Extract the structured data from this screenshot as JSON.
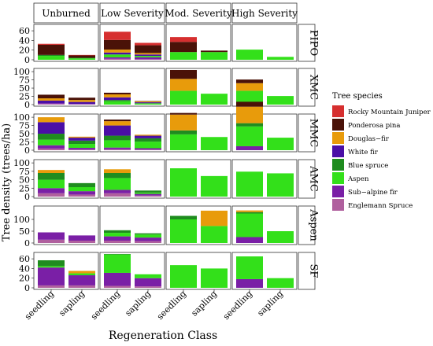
{
  "chart_data": {
    "type": "bar",
    "stacked": true,
    "xlabel": "Regeneration Class",
    "ylabel": "Tree density (trees/ha)",
    "x_categories": [
      "seedling",
      "sapling"
    ],
    "severity_columns": [
      "Unburned",
      "Low Severity",
      "Mod. Severity",
      "High Severity"
    ],
    "forest_type_rows": [
      {
        "label": "PIPO",
        "ylim": [
          0,
          70
        ],
        "ticks": [
          0,
          20,
          40,
          60
        ]
      },
      {
        "label": "XMC",
        "ylim": [
          0,
          105
        ],
        "ticks": [
          0,
          25,
          50,
          75,
          100
        ]
      },
      {
        "label": "MMC",
        "ylim": [
          0,
          105
        ],
        "ticks": [
          0,
          25,
          50,
          75,
          100
        ]
      },
      {
        "label": "AMC",
        "ylim": [
          0,
          105
        ],
        "ticks": [
          0,
          25,
          50,
          75,
          100
        ]
      },
      {
        "label": "Aspen",
        "ylim": [
          0,
          150
        ],
        "ticks": [
          0,
          50,
          100
        ]
      },
      {
        "label": "SF",
        "ylim": [
          0,
          70
        ],
        "ticks": [
          0,
          20,
          40,
          60
        ]
      }
    ],
    "legend": {
      "title": "Tree species",
      "position": "right",
      "items": [
        {
          "name": "Rocky Mountain Juniper",
          "color": "#d62f2f"
        },
        {
          "name": "Ponderosa pina",
          "color": "#4a1208"
        },
        {
          "name": "Douglas−fir",
          "color": "#e89b0b"
        },
        {
          "name": "White fir",
          "color": "#4a0fa6"
        },
        {
          "name": "Blue spruce",
          "color": "#1f8c1f"
        },
        {
          "name": "Aspen",
          "color": "#33e01a"
        },
        {
          "name": "Sub−alpine fir",
          "color": "#7a1fa6"
        },
        {
          "name": "Englemann Spruce",
          "color": "#b0609e"
        }
      ]
    },
    "panels": [
      {
        "row": "PIPO",
        "col": "Unburned",
        "bars": [
          [
            0,
            0,
            0,
            0,
            0,
            8,
            0,
            0,
            0,
            0,
            0,
            0,
            0,
            0,
            0,
            0,
            0,
            0,
            0,
            0,
            0,
            0,
            0,
            0
          ],
          [
            0,
            0,
            0,
            0,
            0,
            0,
            0,
            0
          ]
        ],
        "stacks": {
          "seedling": {
            "Aspen": 8,
            "Blue spruce": 2,
            "Ponderosa pina": 21,
            "Rocky Mountain Juniper": 2
          },
          "sapling": {
            "Aspen": 3,
            "Blue spruce": 1,
            "Ponderosa pina": 5,
            "Rocky Mountain Juniper": 1
          }
        }
      },
      {
        "row": "PIPO",
        "col": "Low Severity",
        "stacks": {
          "seedling": {
            "Englemann Spruce": 2,
            "Sub−alpine fir": 3,
            "Aspen": 6,
            "White fir": 4,
            "Douglas−fir": 6,
            "Ponderosa pina": 20,
            "Rocky Mountain Juniper": 17
          },
          "sapling": {
            "Englemann Spruce": 1,
            "Sub−alpine fir": 4,
            "Aspen": 3,
            "White fir": 3,
            "Douglas−fir": 3,
            "Ponderosa pina": 16,
            "Rocky Mountain Juniper": 5
          }
        }
      },
      {
        "row": "PIPO",
        "col": "Mod. Severity",
        "stacks": {
          "seedling": {
            "Aspen": 16,
            "Ponderosa pina": 21,
            "Rocky Mountain Juniper": 10
          },
          "sapling": {
            "Aspen": 16,
            "Ponderosa pina": 3
          }
        }
      },
      {
        "row": "PIPO",
        "col": "High Severity",
        "stacks": {
          "seedling": {
            "Aspen": 21
          },
          "sapling": {
            "Aspen": 6
          }
        }
      },
      {
        "row": "XMC",
        "col": "Unburned",
        "stacks": {
          "seedling": {
            "Englemann Spruce": 2,
            "Sub−alpine fir": 2,
            "White fir": 8,
            "Douglas−fir": 7,
            "Ponderosa pina": 11
          },
          "sapling": {
            "Englemann Spruce": 1,
            "Sub−alpine fir": 1,
            "White fir": 6,
            "Douglas−fir": 6,
            "Ponderosa pina": 7
          }
        }
      },
      {
        "row": "XMC",
        "col": "Low Severity",
        "stacks": {
          "seedling": {
            "Aspen": 10,
            "White fir": 8,
            "Blue spruce": 4,
            "Douglas−fir": 9,
            "Ponderosa pina": 5
          },
          "sapling": {
            "Aspen": 4,
            "White fir": 3,
            "Douglas−fir": 3,
            "Ponderosa pina": 1
          }
        }
      },
      {
        "row": "XMC",
        "col": "Mod. Severity",
        "stacks": {
          "seedling": {
            "Aspen": 42,
            "Douglas−fir": 36,
            "Ponderosa pina": 27
          },
          "sapling": {
            "Aspen": 33
          }
        }
      },
      {
        "row": "XMC",
        "col": "High Severity",
        "stacks": {
          "seedling": {
            "Aspen": 42,
            "Douglas−fir": 23,
            "Ponderosa pina": 11
          },
          "sapling": {
            "Aspen": 26
          }
        }
      },
      {
        "row": "MMC",
        "col": "Unburned",
        "stacks": {
          "seedling": {
            "Englemann Spruce": 5,
            "Sub−alpine fir": 10,
            "Aspen": 17,
            "Blue spruce": 18,
            "White fir": 35,
            "Douglas−fir": 15
          },
          "sapling": {
            "Englemann Spruce": 2,
            "Sub−alpine fir": 5,
            "Aspen": 12,
            "Blue spruce": 10,
            "White fir": 9,
            "Douglas−fir": 3
          }
        }
      },
      {
        "row": "MMC",
        "col": "Low Severity",
        "stacks": {
          "seedling": {
            "Englemann Spruce": 3,
            "Sub−alpine fir": 5,
            "Aspen": 22,
            "Blue spruce": 14,
            "White fir": 31,
            "Douglas−fir": 13,
            "Ponderosa pina": 5
          },
          "sapling": {
            "Englemann Spruce": 2,
            "Sub−alpine fir": 4,
            "Aspen": 20,
            "Blue spruce": 10,
            "White fir": 8,
            "Douglas−fir": 3
          }
        }
      },
      {
        "row": "MMC",
        "col": "Mod. Severity",
        "stacks": {
          "seedling": {
            "Aspen": 48,
            "Blue spruce": 12,
            "Douglas−fir": 48,
            "Ponderosa pina": 5
          },
          "sapling": {
            "Aspen": 40
          }
        }
      },
      {
        "row": "MMC",
        "col": "High Severity",
        "stacks": {
          "seedling": {
            "Sub−alpine fir": 12,
            "Aspen": 60,
            "Blue spruce": 10,
            "Douglas−fir": 50,
            "Ponderosa pina": 15
          },
          "sapling": {
            "Aspen": 38
          }
        }
      },
      {
        "row": "AMC",
        "col": "Unburned",
        "stacks": {
          "seedling": {
            "Englemann Spruce": 10,
            "Sub−alpine fir": 15,
            "Aspen": 25,
            "Blue spruce": 20,
            "White fir": 0,
            "Douglas−fir": 9
          },
          "sapling": {
            "Englemann Spruce": 6,
            "Sub−alpine fir": 10,
            "Aspen": 12,
            "Blue spruce": 12
          }
        }
      },
      {
        "row": "AMC",
        "col": "Low Severity",
        "stacks": {
          "seedling": {
            "Englemann Spruce": 10,
            "Sub−alpine fir": 10,
            "Aspen": 35,
            "Blue spruce": 15,
            "Douglas−fir": 11
          },
          "sapling": {
            "Englemann Spruce": 3,
            "Sub−alpine fir": 5,
            "Aspen": 4,
            "Blue spruce": 6
          }
        }
      },
      {
        "row": "AMC",
        "col": "Mod. Severity",
        "stacks": {
          "seedling": {
            "Aspen": 84
          },
          "sapling": {
            "Aspen": 61
          }
        }
      },
      {
        "row": "AMC",
        "col": "High Severity",
        "stacks": {
          "seedling": {
            "Aspen": 74
          },
          "sapling": {
            "Aspen": 69
          }
        }
      },
      {
        "row": "Aspen",
        "col": "Unburned",
        "stacks": {
          "seedling": {
            "Englemann Spruce": 14,
            "Sub−alpine fir": 31
          },
          "sapling": {
            "Englemann Spruce": 10,
            "Sub−alpine fir": 22
          }
        }
      },
      {
        "row": "Aspen",
        "col": "Low Severity",
        "stacks": {
          "seedling": {
            "Englemann Spruce": 10,
            "Sub−alpine fir": 18,
            "Aspen": 15,
            "Blue spruce": 11
          },
          "sapling": {
            "Englemann Spruce": 8,
            "Sub−alpine fir": 15,
            "Aspen": 13,
            "Blue spruce": 5
          }
        }
      },
      {
        "row": "Aspen",
        "col": "Mod. Severity",
        "stacks": {
          "seedling": {
            "Aspen": 100,
            "Blue spruce": 15
          },
          "sapling": {
            "Aspen": 72,
            "Douglas−fir": 65
          }
        }
      },
      {
        "row": "Aspen",
        "col": "High Severity",
        "stacks": {
          "seedling": {
            "Sub−alpine fir": 25,
            "Douglas−fir": 7,
            "Aspen": 100,
            "Blue spruce": 6
          },
          "sapling": {
            "Aspen": 50
          }
        }
      },
      {
        "row": "SF",
        "col": "Unburned",
        "stacks": {
          "seedling": {
            "Englemann Spruce": 5,
            "Sub−alpine fir": 37,
            "Blue spruce": 12,
            "Aspen": 3
          },
          "sapling": {
            "Englemann Spruce": 5,
            "Sub−alpine fir": 21,
            "Aspen": 4,
            "Douglas−fir": 5
          }
        }
      },
      {
        "row": "SF",
        "col": "Low Severity",
        "stacks": {
          "seedling": {
            "Englemann Spruce": 4,
            "Sub−alpine fir": 27,
            "Aspen": 38,
            "Blue spruce": 1
          },
          "sapling": {
            "Englemann Spruce": 3,
            "Sub−alpine fir": 17,
            "Aspen": 8
          }
        }
      },
      {
        "row": "SF",
        "col": "Mod. Severity",
        "stacks": {
          "seedling": {
            "Aspen": 47
          },
          "sapling": {
            "Aspen": 40
          }
        }
      },
      {
        "row": "SF",
        "col": "High Severity",
        "stacks": {
          "seedling": {
            "Sub−alpine fir": 18,
            "Aspen": 47
          },
          "sapling": {
            "Aspen": 20
          }
        }
      }
    ]
  }
}
